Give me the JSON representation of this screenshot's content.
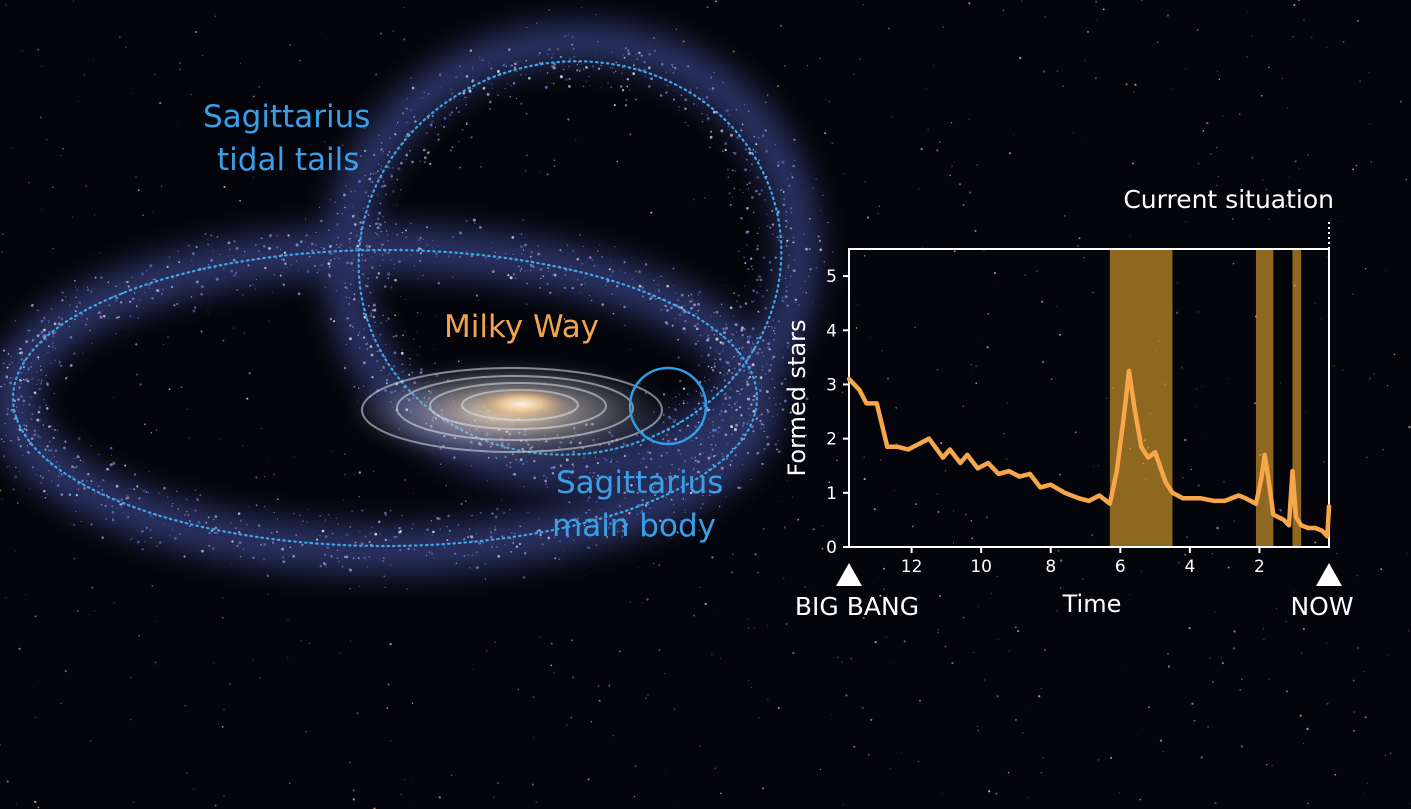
{
  "labels": {
    "tidal_tails": [
      "Sagittarius",
      "tidal tails"
    ],
    "milky_way": "Milky Way",
    "main_body": [
      "Sagittarius",
      "main body"
    ],
    "current_situation": "Current situation",
    "big_bang": "BIG BANG",
    "now": "NOW"
  },
  "colors": {
    "background": "#04050b",
    "tail_label": "#3a9fe8",
    "milky_way_label": "#f2a44f",
    "curve": "#f7a64a",
    "band": "#c9922a",
    "axes": "#ffffff"
  },
  "chart_data": {
    "type": "line",
    "xlabel": "Time",
    "ylabel": "Formed stars",
    "xlim": [
      13.8,
      0
    ],
    "ylim": [
      0,
      5.5
    ],
    "xticks": [
      12,
      10,
      8,
      6,
      4,
      2
    ],
    "yticks": [
      0,
      1,
      2,
      3,
      4,
      5
    ],
    "grid": false,
    "highlight_bands": [
      [
        6.3,
        4.5
      ],
      [
        2.1,
        1.6
      ],
      [
        1.05,
        0.8
      ]
    ],
    "series": [
      {
        "x": [
          13.8,
          13.5,
          13.3,
          13.0,
          12.7,
          12.4,
          12.1,
          11.8,
          11.5,
          11.1,
          10.9,
          10.6,
          10.4,
          10.1,
          9.8,
          9.5,
          9.2,
          8.9,
          8.6,
          8.3,
          8.0,
          7.6,
          7.2,
          6.9,
          6.6,
          6.3,
          6.1,
          5.9,
          5.75,
          5.6,
          5.4,
          5.2,
          5.0,
          4.7,
          4.5,
          4.2,
          4.0,
          3.7,
          3.3,
          3.0,
          2.6,
          2.4,
          2.1,
          1.95,
          1.85,
          1.75,
          1.6,
          1.45,
          1.3,
          1.15,
          1.05,
          0.95,
          0.8,
          0.6,
          0.4,
          0.2,
          0.05,
          0.0
        ],
        "y": [
          3.1,
          2.9,
          2.65,
          2.65,
          1.85,
          1.85,
          1.8,
          1.9,
          2.0,
          1.65,
          1.8,
          1.55,
          1.7,
          1.45,
          1.55,
          1.35,
          1.4,
          1.3,
          1.35,
          1.1,
          1.15,
          1.0,
          0.9,
          0.85,
          0.95,
          0.8,
          1.4,
          2.4,
          3.25,
          2.6,
          1.85,
          1.65,
          1.75,
          1.2,
          1.0,
          0.9,
          0.9,
          0.9,
          0.85,
          0.85,
          0.95,
          0.9,
          0.8,
          1.25,
          1.7,
          1.3,
          0.6,
          0.55,
          0.5,
          0.4,
          1.4,
          0.55,
          0.4,
          0.35,
          0.35,
          0.3,
          0.2,
          0.75
        ]
      }
    ]
  }
}
